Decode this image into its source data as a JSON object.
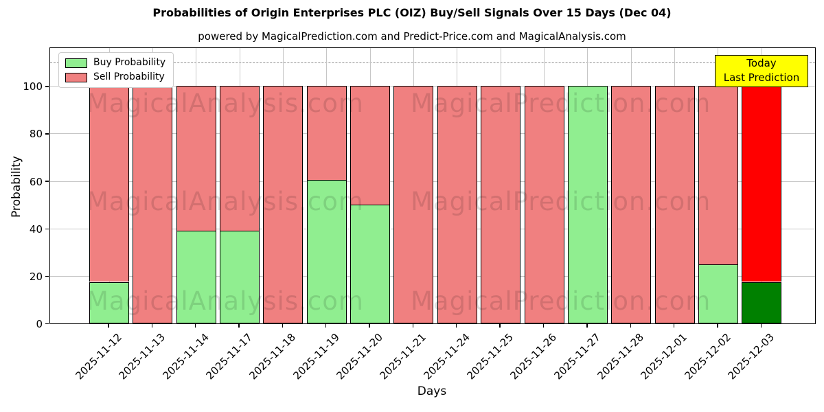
{
  "header": {
    "title": "Probabilities of Origin Enterprises PLC (OIZ) Buy/Sell Signals Over 15 Days (Dec 04)",
    "subtitle": "powered by MagicalPrediction.com and Predict-Price.com and MagicalAnalysis.com"
  },
  "annotation": {
    "line1": "Today",
    "line2": "Last Prediction",
    "background": "#ffff00"
  },
  "watermark": {
    "left_text": "MagicalAnalysis.com",
    "right_text": "MagicalPrediction.com"
  },
  "chart_data": {
    "type": "bar",
    "stacked": true,
    "title": "Probabilities of Origin Enterprises PLC (OIZ) Buy/Sell Signals Over 15 Days (Dec 04)",
    "subtitle": "powered by MagicalPrediction.com and Predict-Price.com and MagicalAnalysis.com",
    "xlabel": "Days",
    "ylabel": "Probability",
    "ylim": [
      0,
      116
    ],
    "yticks": [
      0,
      20,
      40,
      60,
      80,
      100
    ],
    "dashed_line_y": 110,
    "grid": true,
    "legend_position": "upper left",
    "categories": [
      "2025-11-12",
      "2025-11-13",
      "2025-11-14",
      "2025-11-17",
      "2025-11-18",
      "2025-11-19",
      "2025-11-20",
      "2025-11-21",
      "2025-11-24",
      "2025-11-25",
      "2025-11-26",
      "2025-11-27",
      "2025-11-28",
      "2025-12-01",
      "2025-12-02",
      "2025-12-03"
    ],
    "series": [
      {
        "name": "Buy Probability",
        "color": "#90EE90",
        "values": [
          17.5,
          0,
          39,
          39,
          0,
          60.5,
          50,
          0,
          0,
          0,
          0,
          100,
          0,
          0,
          25,
          17.5
        ]
      },
      {
        "name": "Sell Probability",
        "color": "#F08080",
        "values": [
          82.5,
          100,
          61,
          61,
          100,
          39.5,
          50,
          100,
          100,
          100,
          100,
          0,
          100,
          100,
          75,
          82.5
        ]
      }
    ],
    "today_bar": {
      "index": 15,
      "buy_color": "#008000",
      "sell_color": "#FF0000"
    }
  }
}
